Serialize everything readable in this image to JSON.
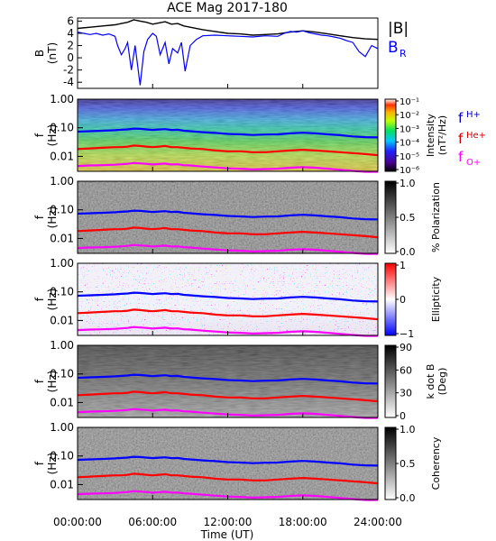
{
  "title": "ACE Mag 2017-180",
  "x_axis": {
    "label": "Time (UT)",
    "ticks": [
      "00:00:00",
      "06:00:00",
      "12:00:00",
      "18:00:00",
      "24:00:00"
    ]
  },
  "colors": {
    "b_total": "#000000",
    "b_r": "#0000ff",
    "f_h": "#0000ff",
    "f_he": "#ff0000",
    "f_o": "#ff00ff"
  },
  "legend_b": {
    "total": "|B|",
    "radial": "B",
    "radial_sub": "R"
  },
  "legend_f": {
    "h": "f",
    "h_sup": "H+",
    "he": "f",
    "he_sup": "He+",
    "o": "f",
    "o_sub": "O+"
  },
  "panels": [
    {
      "key": "b",
      "ylabel1": "B",
      "ylabel2": "(nT)",
      "yticks": [
        "6",
        "4",
        "2",
        "0",
        "-2",
        "-4"
      ]
    },
    {
      "key": "intensity",
      "ylabel1": "f",
      "ylabel2": "(Hz)",
      "yticks": [
        "1.00",
        "0.10",
        "0.01"
      ],
      "cbar_label": "Intensity",
      "cbar_label2": "(nT²/Hz)",
      "cbar_ticks": [
        "10⁻¹",
        "10⁻²",
        "10⁻³",
        "10⁻⁴",
        "10⁻⁵",
        "10⁻⁶"
      ]
    },
    {
      "key": "polarization",
      "ylabel1": "f",
      "ylabel2": "(Hz)",
      "yticks": [
        "1.00",
        "0.10",
        "0.01"
      ],
      "cbar_label": "% Polarization",
      "cbar_ticks": [
        "1.0",
        "0.5",
        "0.0"
      ]
    },
    {
      "key": "ellipticity",
      "ylabel1": "f",
      "ylabel2": "(Hz)",
      "yticks": [
        "1.00",
        "0.10",
        "0.01"
      ],
      "cbar_label": "Ellipticity",
      "cbar_ticks": [
        "1",
        "0",
        "−1"
      ]
    },
    {
      "key": "kdotb",
      "ylabel1": "f",
      "ylabel2": "(Hz)",
      "yticks": [
        "1.00",
        "0.10",
        "0.01"
      ],
      "cbar_label": "k dot B",
      "cbar_label2": "(Deg)",
      "cbar_ticks": [
        "90",
        "60",
        "30",
        "0"
      ]
    },
    {
      "key": "coherency",
      "ylabel1": "f",
      "ylabel2": "(Hz)",
      "yticks": [
        "1.00",
        "0.10",
        "0.01"
      ],
      "cbar_label": "Coherency",
      "cbar_ticks": [
        "1.0",
        "0.5",
        "0.0"
      ]
    }
  ],
  "chart_data": {
    "type": "line",
    "x_units": "hours UT",
    "xlim": [
      0,
      24
    ],
    "b_field": {
      "ylim": [
        -5,
        6.5
      ],
      "series": [
        {
          "name": "|B|",
          "x": [
            0,
            1,
            2,
            3,
            3.5,
            4,
            4.5,
            5,
            5.5,
            6,
            6.5,
            7,
            7.5,
            8,
            8.5,
            9,
            10,
            11,
            12,
            13,
            14,
            15,
            16,
            17,
            18,
            19,
            20,
            21,
            22,
            23,
            24
          ],
          "values": [
            4.8,
            5.0,
            5.2,
            5.4,
            5.6,
            5.8,
            6.2,
            6.0,
            5.8,
            5.5,
            5.7,
            5.9,
            5.5,
            5.6,
            5.2,
            5.0,
            4.6,
            4.3,
            4.0,
            3.9,
            3.7,
            3.8,
            3.9,
            4.2,
            4.4,
            4.2,
            3.9,
            3.6,
            3.3,
            3.1,
            3.0
          ]
        },
        {
          "name": "B",
          "x": [
            0,
            0.5,
            1,
            1.5,
            2,
            2.5,
            3,
            3.2,
            3.5,
            3.8,
            4,
            4.3,
            4.6,
            5,
            5.3,
            5.6,
            6,
            6.3,
            6.6,
            7,
            7.3,
            7.6,
            8,
            8.3,
            8.6,
            9,
            9.5,
            10,
            11,
            12,
            13,
            14,
            15,
            16,
            16.5,
            17,
            17.5,
            18,
            18.5,
            19,
            19.5,
            20,
            20.5,
            21,
            21.5,
            22,
            22.5,
            23,
            23.5,
            24
          ],
          "values": [
            4.2,
            4.0,
            3.8,
            4.0,
            3.7,
            3.9,
            3.5,
            2.0,
            0.5,
            1.5,
            2.5,
            -2.0,
            2.0,
            -4.5,
            1.0,
            3.0,
            4.0,
            3.5,
            0.5,
            2.5,
            -1.0,
            1.5,
            0.8,
            2.5,
            -2.2,
            2.0,
            3.0,
            3.6,
            3.7,
            3.6,
            3.5,
            3.4,
            3.6,
            3.5,
            4.0,
            4.3,
            4.2,
            4.4,
            4.1,
            3.9,
            3.7,
            3.6,
            3.4,
            3.2,
            2.8,
            2.5,
            1.0,
            0.2,
            2.0,
            1.5
          ]
        }
      ]
    },
    "freq_axis": {
      "scale": "log",
      "ylim": [
        0.003,
        1.0
      ]
    },
    "cyclotron_frequencies": {
      "x": [
        0,
        1,
        2,
        3,
        3.5,
        4,
        4.5,
        5,
        5.5,
        6,
        6.5,
        7,
        7.5,
        8,
        8.5,
        9,
        10,
        11,
        12,
        13,
        14,
        15,
        16,
        17,
        18,
        19,
        20,
        21,
        22,
        23,
        24
      ],
      "series": [
        {
          "name": "H+",
          "values": [
            0.073,
            0.076,
            0.079,
            0.082,
            0.085,
            0.088,
            0.094,
            0.092,
            0.088,
            0.084,
            0.087,
            0.09,
            0.084,
            0.085,
            0.079,
            0.076,
            0.07,
            0.066,
            0.061,
            0.059,
            0.056,
            0.058,
            0.059,
            0.064,
            0.067,
            0.064,
            0.059,
            0.055,
            0.05,
            0.047,
            0.046
          ]
        },
        {
          "name": "He+",
          "values": [
            0.018,
            0.019,
            0.02,
            0.021,
            0.021,
            0.022,
            0.024,
            0.023,
            0.022,
            0.021,
            0.022,
            0.023,
            0.021,
            0.021,
            0.02,
            0.019,
            0.018,
            0.016,
            0.015,
            0.015,
            0.014,
            0.014,
            0.015,
            0.016,
            0.017,
            0.016,
            0.015,
            0.014,
            0.013,
            0.012,
            0.011
          ]
        },
        {
          "name": "O+",
          "values": [
            0.0046,
            0.0048,
            0.0049,
            0.0051,
            0.0053,
            0.0055,
            0.0059,
            0.0057,
            0.0055,
            0.0052,
            0.0054,
            0.0056,
            0.0052,
            0.0053,
            0.0049,
            0.0048,
            0.0044,
            0.0041,
            0.0038,
            0.0037,
            0.0035,
            0.0036,
            0.0037,
            0.004,
            0.0042,
            0.004,
            0.0037,
            0.0034,
            0.0031,
            0.0029,
            0.0029
          ]
        }
      ]
    }
  }
}
